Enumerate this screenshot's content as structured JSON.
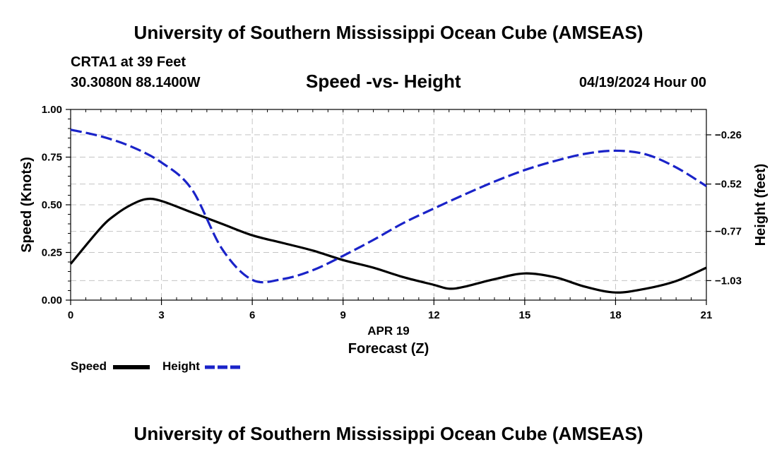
{
  "header": {
    "title": "University of Southern Mississippi Ocean Cube (AMSEAS)",
    "station": "CRTA1 at 39 Feet",
    "coordinates": "30.3080N  88.1400W",
    "subtitle": "Speed -vs- Height",
    "datetime": "04/19/2024 Hour 00"
  },
  "footer": {
    "title": "University of Southern Mississippi Ocean Cube (AMSEAS)"
  },
  "chart_data": {
    "type": "line",
    "title": "Speed -vs- Height",
    "xlabel": "Forecast (Z)",
    "xlabel_date": "APR 19",
    "ylabel": "Speed (Knots)",
    "y2label": "Height (feet)",
    "xlim": [
      0,
      21
    ],
    "ylim": [
      0,
      1
    ],
    "y2lim": [
      -1.133,
      -0.126
    ],
    "x_ticks": [
      0,
      3,
      6,
      9,
      12,
      15,
      18,
      21
    ],
    "x_tick_labels": [
      "0",
      "3",
      "6",
      "9",
      "12",
      "15",
      "18",
      "21"
    ],
    "y_ticks": [
      0,
      0.25,
      0.5,
      0.75,
      1.0
    ],
    "y_tick_labels": [
      "0.00",
      "0.25",
      "0.50",
      "0.75",
      "1.00"
    ],
    "y2_ticks": [
      -0.26,
      -0.52,
      -0.77,
      -1.03
    ],
    "y2_tick_labels": [
      "−0.26",
      "−0.52",
      "−0.77",
      "−1.03"
    ],
    "grid": true,
    "legend_position": "bottom-left",
    "series": [
      {
        "name": "Speed",
        "axis": "left",
        "color": "#000000",
        "style": "solid",
        "x": [
          0,
          1,
          1.5,
          2,
          2.5,
          3,
          4,
          5,
          6,
          7,
          8,
          9,
          10,
          11,
          12,
          12.5,
          13,
          14,
          15,
          16,
          17,
          18,
          19,
          20,
          21
        ],
        "values": [
          0.19,
          0.38,
          0.45,
          0.5,
          0.53,
          0.52,
          0.46,
          0.4,
          0.34,
          0.3,
          0.26,
          0.21,
          0.17,
          0.12,
          0.08,
          0.06,
          0.07,
          0.11,
          0.14,
          0.12,
          0.07,
          0.04,
          0.06,
          0.1,
          0.17
        ]
      },
      {
        "name": "Height",
        "axis": "right",
        "color": "#1a23c8",
        "style": "dashed",
        "x": [
          0,
          1,
          2,
          3,
          4,
          5,
          6,
          7,
          8,
          9,
          10,
          11,
          12,
          13,
          14,
          15,
          16,
          17,
          18,
          19,
          20,
          21
        ],
        "values": [
          -0.233,
          -0.268,
          -0.322,
          -0.406,
          -0.547,
          -0.862,
          -1.026,
          -1.022,
          -0.975,
          -0.899,
          -0.815,
          -0.725,
          -0.649,
          -0.576,
          -0.507,
          -0.446,
          -0.398,
          -0.36,
          -0.344,
          -0.363,
          -0.432,
          -0.531
        ]
      }
    ]
  },
  "legend": {
    "speed_label": "Speed",
    "height_label": "Height"
  }
}
